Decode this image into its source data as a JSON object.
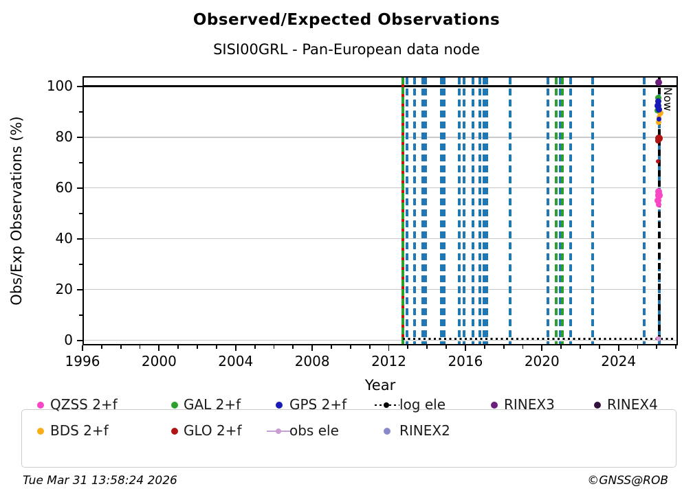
{
  "title": "Observed/Expected Observations",
  "subtitle": "SISI00GRL - Pan-European data node",
  "footer": {
    "timestamp": "Tue Mar 31 13:58:24 2026",
    "credit": "©GNSS@ROB"
  },
  "chart_data": {
    "type": "scatter",
    "title": "Observed/Expected Observations",
    "subtitle": "SISI00GRL - Pan-European data node",
    "xlabel": "Year",
    "ylabel": "Obs/Exp Observations (%)",
    "xlim": [
      1996,
      2027.1
    ],
    "ylim": [
      -2,
      104
    ],
    "xticks": [
      1996,
      2000,
      2004,
      2008,
      2012,
      2016,
      2020,
      2024
    ],
    "yticks": [
      0,
      20,
      40,
      60,
      80,
      100
    ],
    "grid": "horizontal gray lines at major y ticks",
    "legend_position": "bottom",
    "reference_line": {
      "y": 100,
      "color": "#000000",
      "style": "solid"
    },
    "now_line": {
      "x": 2026.13,
      "label": "Now",
      "color": "#000000",
      "style": "dashed"
    },
    "log_ele_line": {
      "y": 0.6,
      "x_start": 2012.72,
      "x_end": 2027.1,
      "color": "#000000",
      "style": "dotted"
    },
    "line_colors": {
      "blue": "#1f77b4",
      "green": "#2ca02c",
      "red": "#cc1111"
    },
    "event_lines": [
      {
        "x": 2012.72,
        "style": "green-red"
      },
      {
        "x": 2012.94,
        "style": "blue"
      },
      {
        "x": 2013.33,
        "style": "blue"
      },
      {
        "x": 2013.79,
        "style": "blue"
      },
      {
        "x": 2013.93,
        "style": "blue"
      },
      {
        "x": 2014.75,
        "style": "blue"
      },
      {
        "x": 2014.89,
        "style": "blue"
      },
      {
        "x": 2015.69,
        "style": "blue"
      },
      {
        "x": 2015.93,
        "style": "blue"
      },
      {
        "x": 2016.41,
        "style": "blue"
      },
      {
        "x": 2016.77,
        "style": "blue"
      },
      {
        "x": 2016.98,
        "style": "blue"
      },
      {
        "x": 2017.13,
        "style": "blue"
      },
      {
        "x": 2018.33,
        "style": "blue"
      },
      {
        "x": 2020.31,
        "style": "blue"
      },
      {
        "x": 2020.73,
        "style": "green"
      },
      {
        "x": 2020.97,
        "style": "blue"
      },
      {
        "x": 2021.07,
        "style": "green"
      },
      {
        "x": 2021.51,
        "style": "blue"
      },
      {
        "x": 2022.65,
        "style": "blue"
      },
      {
        "x": 2025.35,
        "style": "blue"
      },
      {
        "x": 2026.13,
        "style": "blue"
      }
    ],
    "series": [
      {
        "name": "QZSS 2+f",
        "color": "#f847c5",
        "points": [
          {
            "x": 2026.08,
            "y": 58.5,
            "r": 5
          },
          {
            "x": 2026.12,
            "y": 57,
            "r": 5.5
          },
          {
            "x": 2026.07,
            "y": 55,
            "r": 5
          },
          {
            "x": 2026.1,
            "y": 53.5,
            "r": 4
          },
          {
            "x": 2026.05,
            "y": 0.6,
            "r": 3
          }
        ]
      },
      {
        "name": "BDS 2+f",
        "color": "#f9ad18",
        "points": [
          {
            "x": 2026.2,
            "y": 89.5,
            "r": 4.5
          },
          {
            "x": 2026.12,
            "y": 88,
            "r": 3.5
          },
          {
            "x": 2026.08,
            "y": 86,
            "r": 4
          }
        ]
      },
      {
        "name": "GAL 2+f",
        "color": "#2ca02c",
        "points": [
          {
            "x": 2026.08,
            "y": 95.5,
            "r": 4.5
          },
          {
            "x": 2026.03,
            "y": 90.5,
            "r": 4
          }
        ]
      },
      {
        "name": "GLO 2+f",
        "color": "#b01414",
        "points": [
          {
            "x": 2026.1,
            "y": 79.5,
            "r": 5.5
          },
          {
            "x": 2026.06,
            "y": 78.5,
            "r": 4
          },
          {
            "x": 2026.06,
            "y": 70.5,
            "r": 3
          }
        ]
      },
      {
        "name": "GPS 2+f",
        "color": "#1a1ab8",
        "points": [
          {
            "x": 2026.08,
            "y": 94,
            "r": 4.5
          },
          {
            "x": 2026.07,
            "y": 92.5,
            "r": 5
          },
          {
            "x": 2026.1,
            "y": 91,
            "r": 4.5
          },
          {
            "x": 2026.13,
            "y": 87,
            "r": 3.5
          }
        ]
      },
      {
        "name": "obs ele",
        "color": "#c79fd4",
        "points": [
          {
            "x": 2026.1,
            "y": 0.7,
            "r": 3.5
          }
        ]
      },
      {
        "name": "log ele",
        "color": "#000000",
        "points": []
      },
      {
        "name": "RINEX2",
        "color": "#8888cc",
        "points": []
      },
      {
        "name": "RINEX3",
        "color": "#6b1c7e",
        "points": [
          {
            "x": 2026.08,
            "y": 101.5,
            "r": 5
          }
        ]
      },
      {
        "name": "RINEX4",
        "color": "#33113d",
        "points": []
      }
    ]
  },
  "legend": {
    "items": [
      {
        "label": "QZSS 2+f",
        "color": "#f847c5",
        "glyph": "dot",
        "row": 0,
        "col": 0
      },
      {
        "label": "GAL 2+f",
        "color": "#2ca02c",
        "glyph": "dot",
        "row": 0,
        "col": 1
      },
      {
        "label": "GPS 2+f",
        "color": "#1a1ab8",
        "glyph": "dot",
        "row": 0,
        "col": 2
      },
      {
        "label": "log ele",
        "color": "#000000",
        "glyph": "dotted-line-dot",
        "row": 0,
        "col": 3
      },
      {
        "label": "RINEX3",
        "color": "#6b1c7e",
        "glyph": "dot",
        "row": 0,
        "col": 4
      },
      {
        "label": "RINEX4",
        "color": "#33113d",
        "glyph": "dot",
        "row": 0,
        "col": 5
      },
      {
        "label": "BDS 2+f",
        "color": "#f9ad18",
        "glyph": "dot",
        "row": 1,
        "col": 0
      },
      {
        "label": "GLO 2+f",
        "color": "#b01414",
        "glyph": "dot",
        "row": 1,
        "col": 1
      },
      {
        "label": "obs ele",
        "color": "#c79fd4",
        "glyph": "line-dot",
        "row": 1,
        "col": 2
      },
      {
        "label": "RINEX2",
        "color": "#8888cc",
        "glyph": "dot",
        "row": 1,
        "col": 3
      }
    ]
  }
}
